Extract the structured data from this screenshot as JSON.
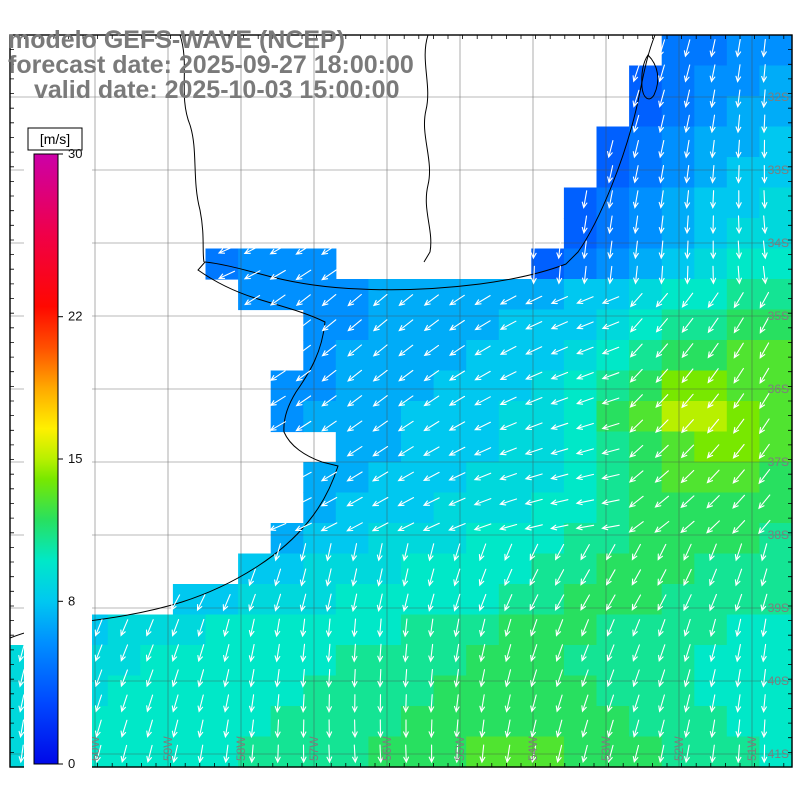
{
  "header": {
    "model_line": "modelo GEFS-WAVE (NCEP)",
    "forecast_line": "forecast date: 2025-09-27 18:00:00",
    "valid_line": "valid date: 2025-10-03 15:00:00"
  },
  "colorbar": {
    "unit_label": "[m/s]",
    "min": 0,
    "max": 30,
    "ticks": [
      {
        "value": 30,
        "label": "30"
      },
      {
        "value": 22,
        "label": "22"
      },
      {
        "value": 15,
        "label": "15"
      },
      {
        "value": 8,
        "label": "8"
      },
      {
        "value": 0,
        "label": "0"
      }
    ],
    "colormap": [
      {
        "v": 0,
        "c": "#0008e8"
      },
      {
        "v": 3,
        "c": "#0048ff"
      },
      {
        "v": 6,
        "c": "#0090ff"
      },
      {
        "v": 8,
        "c": "#00c8f0"
      },
      {
        "v": 10,
        "c": "#00e8c8"
      },
      {
        "v": 12,
        "c": "#28e060"
      },
      {
        "v": 14,
        "c": "#78e800"
      },
      {
        "v": 15,
        "c": "#b8f000"
      },
      {
        "v": 16.5,
        "c": "#fff000"
      },
      {
        "v": 18.5,
        "c": "#ffa800"
      },
      {
        "v": 20.5,
        "c": "#ff5000"
      },
      {
        "v": 22.5,
        "c": "#ff0800"
      },
      {
        "v": 26,
        "c": "#f00048"
      },
      {
        "v": 30,
        "c": "#cc00a8"
      }
    ]
  },
  "map": {
    "lat_labels": [
      "32S",
      "33S",
      "34S",
      "35S",
      "36S",
      "37S",
      "38S",
      "39S",
      "40S",
      "41S"
    ],
    "lon_labels": [
      "60W",
      "59W",
      "58W",
      "57W",
      "56W",
      "55W",
      "54W",
      "53W",
      "52W",
      "51W"
    ],
    "field": {
      "units": "m/s",
      "grid_rows": 24,
      "grid_cols": 24,
      "no_data": -1,
      "values": [
        [
          -1,
          -1,
          -1,
          -1,
          -1,
          -1,
          -1,
          -1,
          -1,
          -1,
          -1,
          -1,
          -1,
          -1,
          -1,
          -1,
          -1,
          -1,
          -1,
          -1,
          5,
          5,
          6,
          6
        ],
        [
          -1,
          -1,
          -1,
          -1,
          -1,
          -1,
          -1,
          -1,
          -1,
          -1,
          -1,
          -1,
          -1,
          -1,
          -1,
          -1,
          -1,
          -1,
          -1,
          4,
          5,
          6,
          6,
          7
        ],
        [
          -1,
          -1,
          -1,
          -1,
          -1,
          -1,
          -1,
          -1,
          -1,
          -1,
          -1,
          -1,
          -1,
          -1,
          -1,
          -1,
          -1,
          -1,
          -1,
          4,
          5,
          6,
          7,
          7
        ],
        [
          -1,
          -1,
          -1,
          -1,
          -1,
          -1,
          -1,
          -1,
          -1,
          -1,
          -1,
          -1,
          -1,
          -1,
          -1,
          -1,
          -1,
          -1,
          4,
          5,
          6,
          7,
          7,
          8
        ],
        [
          -1,
          -1,
          -1,
          -1,
          -1,
          -1,
          -1,
          -1,
          -1,
          -1,
          -1,
          -1,
          -1,
          -1,
          -1,
          -1,
          -1,
          -1,
          4,
          5,
          6,
          7,
          8,
          8
        ],
        [
          -1,
          -1,
          -1,
          -1,
          -1,
          -1,
          -1,
          -1,
          -1,
          -1,
          -1,
          -1,
          -1,
          -1,
          -1,
          -1,
          -1,
          4,
          5,
          6,
          7,
          8,
          8,
          9
        ],
        [
          -1,
          -1,
          -1,
          -1,
          -1,
          -1,
          -1,
          -1,
          -1,
          -1,
          -1,
          -1,
          -1,
          -1,
          -1,
          -1,
          -1,
          4,
          5,
          6,
          7,
          8,
          9,
          9
        ],
        [
          -1,
          -1,
          -1,
          -1,
          -1,
          -1,
          5,
          6,
          6,
          6,
          -1,
          -1,
          -1,
          -1,
          -1,
          -1,
          4,
          5,
          6,
          7,
          8,
          9,
          10,
          10
        ],
        [
          -1,
          -1,
          -1,
          -1,
          -1,
          -1,
          -1,
          6,
          6,
          6,
          6,
          7,
          7,
          7,
          7,
          7,
          7,
          8,
          8,
          9,
          10,
          10,
          11,
          11
        ],
        [
          -1,
          -1,
          -1,
          -1,
          -1,
          -1,
          -1,
          -1,
          -1,
          6,
          6,
          7,
          7,
          7,
          7,
          8,
          8,
          8,
          9,
          10,
          11,
          11,
          12,
          12
        ],
        [
          -1,
          -1,
          -1,
          -1,
          -1,
          -1,
          -1,
          -1,
          -1,
          6,
          7,
          7,
          7,
          7,
          8,
          8,
          8,
          9,
          10,
          11,
          12,
          12,
          13,
          13
        ],
        [
          -1,
          -1,
          -1,
          -1,
          -1,
          -1,
          -1,
          -1,
          6,
          6,
          7,
          7,
          7,
          8,
          8,
          8,
          9,
          10,
          11,
          12,
          14,
          14,
          13,
          13
        ],
        [
          -1,
          -1,
          -1,
          -1,
          -1,
          -1,
          -1,
          -1,
          6,
          7,
          7,
          7,
          8,
          8,
          8,
          9,
          9,
          10,
          12,
          13,
          15,
          15,
          14,
          13
        ],
        [
          -1,
          -1,
          -1,
          -1,
          -1,
          -1,
          -1,
          -1,
          -1,
          -1,
          7,
          7,
          8,
          8,
          8,
          9,
          9,
          10,
          11,
          12,
          13,
          14,
          14,
          13
        ],
        [
          -1,
          -1,
          -1,
          -1,
          -1,
          -1,
          -1,
          -1,
          -1,
          7,
          7,
          8,
          8,
          8,
          9,
          9,
          9,
          10,
          11,
          12,
          13,
          13,
          13,
          12
        ],
        [
          -1,
          -1,
          -1,
          -1,
          -1,
          -1,
          -1,
          -1,
          -1,
          7,
          8,
          8,
          8,
          9,
          9,
          9,
          10,
          10,
          11,
          12,
          12,
          12,
          12,
          12
        ],
        [
          -1,
          -1,
          -1,
          -1,
          -1,
          -1,
          -1,
          -1,
          7,
          8,
          8,
          9,
          9,
          9,
          10,
          10,
          10,
          11,
          11,
          12,
          12,
          12,
          12,
          11
        ],
        [
          -1,
          -1,
          -1,
          -1,
          -1,
          -1,
          -1,
          8,
          8,
          9,
          9,
          9,
          10,
          10,
          10,
          10,
          11,
          11,
          12,
          12,
          12,
          11,
          11,
          11
        ],
        [
          -1,
          -1,
          -1,
          -1,
          -1,
          8,
          8,
          9,
          9,
          9,
          10,
          10,
          10,
          10,
          10,
          11,
          11,
          12,
          12,
          12,
          11,
          11,
          11,
          11
        ],
        [
          -1,
          -1,
          8,
          9,
          9,
          9,
          10,
          10,
          10,
          10,
          10,
          10,
          11,
          11,
          11,
          12,
          12,
          12,
          11,
          11,
          11,
          11,
          10,
          10
        ],
        [
          9,
          9,
          9,
          9,
          10,
          10,
          10,
          10,
          10,
          10,
          11,
          11,
          11,
          11,
          12,
          12,
          12,
          11,
          11,
          11,
          11,
          10,
          10,
          10
        ],
        [
          9,
          9,
          9,
          10,
          10,
          10,
          10,
          10,
          10,
          11,
          11,
          11,
          11,
          12,
          12,
          12,
          12,
          12,
          11,
          11,
          11,
          10,
          10,
          10
        ],
        [
          9,
          9,
          10,
          10,
          10,
          10,
          10,
          10,
          11,
          11,
          11,
          11,
          12,
          12,
          12,
          12,
          12,
          12,
          12,
          11,
          11,
          11,
          10,
          10
        ],
        [
          9,
          10,
          10,
          10,
          10,
          10,
          10,
          11,
          11,
          11,
          11,
          12,
          12,
          12,
          13,
          13,
          13,
          12,
          12,
          12,
          11,
          11,
          11,
          10
        ]
      ]
    }
  }
}
